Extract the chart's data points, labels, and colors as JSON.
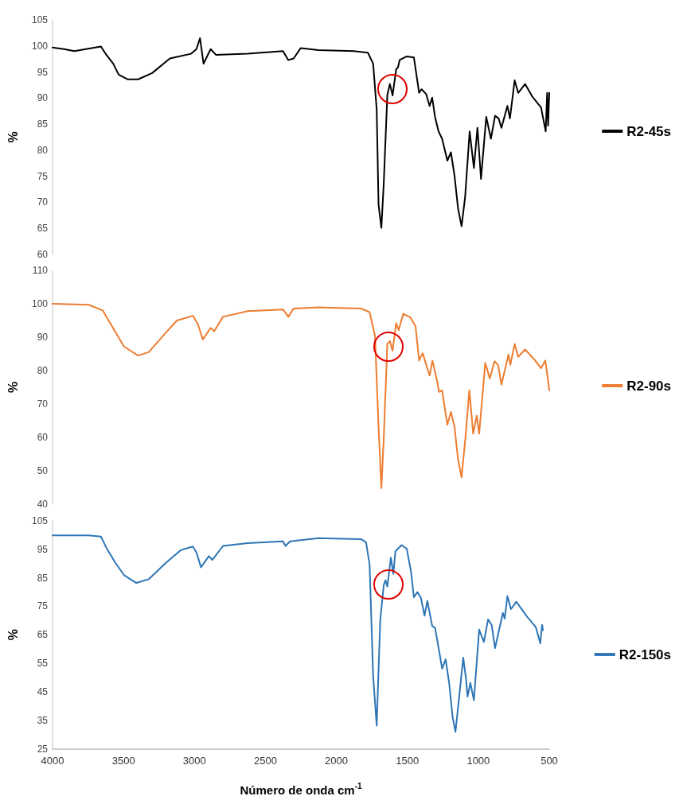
{
  "chart_data": [
    {
      "type": "line",
      "ylabel": "%",
      "xlim": [
        4000,
        500
      ],
      "xticks": [
        4000,
        3500,
        3000,
        2500,
        2000,
        1500,
        1000,
        500
      ],
      "ylim": [
        60,
        105
      ],
      "yticks": [
        60,
        65,
        70,
        75,
        80,
        85,
        90,
        95,
        100,
        105
      ],
      "tick_labels": "y",
      "legend": "right",
      "grid": false,
      "marker": "none",
      "series": [
        {
          "name": "R2-45s",
          "color": "#000000",
          "x": [
            4000,
            3920,
            3846,
            3659,
            3621,
            3572,
            3534,
            3472,
            3397,
            3298,
            3173,
            3024,
            2986,
            2961,
            2936,
            2886,
            2849,
            2625,
            2376,
            2339,
            2301,
            2251,
            2127,
            1878,
            1778,
            1741,
            1716,
            1703,
            1683,
            1666,
            1641,
            1623,
            1604,
            1579,
            1566,
            1554,
            1504,
            1454,
            1417,
            1400,
            1368,
            1343,
            1325,
            1305,
            1280,
            1255,
            1218,
            1193,
            1168,
            1143,
            1118,
            1093,
            1061,
            1031,
            1006,
            981,
            944,
            911,
            882,
            857,
            837,
            795,
            777,
            744,
            719,
            670,
            620,
            558,
            525,
            515,
            508,
            500
          ],
          "values": [
            99.7,
            99.4,
            99.0,
            99.9,
            98.3,
            96.6,
            94.5,
            93.6,
            93.6,
            94.8,
            97.6,
            98.5,
            99.4,
            101.5,
            96.6,
            99.4,
            98.3,
            98.5,
            99.0,
            97.3,
            97.6,
            99.6,
            99.2,
            99.0,
            98.7,
            96.6,
            87.8,
            69.6,
            65.1,
            73.8,
            90.6,
            92.7,
            90.5,
            95.5,
            95.9,
            97.3,
            98.0,
            97.8,
            91.0,
            91.7,
            90.8,
            88.5,
            90.1,
            86.4,
            83.6,
            82.2,
            78.0,
            79.6,
            75.2,
            68.9,
            65.4,
            71.0,
            83.6,
            76.6,
            84.3,
            74.5,
            86.4,
            82.2,
            86.6,
            86.1,
            84.3,
            88.5,
            86.1,
            93.4,
            91.0,
            92.7,
            90.3,
            88.2,
            83.6,
            91.0,
            84.7,
            91.0
          ]
        }
      ]
    },
    {
      "type": "line",
      "ylabel": "%",
      "xlim": [
        4000,
        500
      ],
      "xticks": [
        4000,
        3500,
        3000,
        2500,
        2000,
        1500,
        1000,
        500
      ],
      "ylim": [
        40,
        110
      ],
      "yticks": [
        40,
        50,
        60,
        70,
        80,
        90,
        100,
        110
      ],
      "tick_labels": "y",
      "legend": "right",
      "grid": false,
      "marker": "none",
      "series": [
        {
          "name": "R2-90s",
          "color": "#ed7d31",
          "x": [
            4000,
            3746,
            3646,
            3572,
            3497,
            3397,
            3323,
            3198,
            3123,
            3011,
            2974,
            2941,
            2886,
            2861,
            2799,
            2625,
            2376,
            2339,
            2301,
            2127,
            1828,
            1766,
            1728,
            1703,
            1683,
            1666,
            1641,
            1623,
            1604,
            1579,
            1561,
            1529,
            1479,
            1442,
            1417,
            1392,
            1343,
            1323,
            1293,
            1276,
            1255,
            1218,
            1193,
            1168,
            1143,
            1118,
            1093,
            1063,
            1036,
            1011,
            994,
            951,
            919,
            886,
            861,
            837,
            787,
            774,
            744,
            719,
            670,
            607,
            558,
            528,
            513,
            500
          ],
          "values": [
            100,
            99.7,
            98.0,
            92.6,
            87.2,
            84.5,
            85.5,
            91.5,
            95.0,
            96.4,
            93.7,
            89.3,
            92.8,
            91.8,
            96.1,
            97.8,
            98.3,
            96.1,
            98.6,
            98.9,
            98.6,
            97.5,
            90.4,
            63.3,
            44.8,
            60.0,
            88.0,
            88.8,
            85.9,
            94.2,
            92.1,
            97.0,
            95.9,
            93.2,
            83.0,
            85.2,
            78.5,
            83.0,
            77.4,
            73.6,
            74.1,
            63.8,
            67.6,
            63.3,
            53.5,
            48.0,
            58.9,
            74.1,
            61.1,
            66.5,
            61.1,
            82.3,
            77.6,
            82.8,
            81.7,
            75.8,
            84.8,
            81.7,
            88.0,
            84.1,
            86.3,
            83.4,
            80.7,
            83.0,
            78.5,
            74.1
          ]
        }
      ]
    },
    {
      "type": "line",
      "ylabel": "%",
      "xlabel": "Número de onda cm$^{-1}$",
      "xlim": [
        4000,
        500
      ],
      "xticks": [
        4000,
        3500,
        3000,
        2500,
        2000,
        1500,
        1000,
        500
      ],
      "ylim": [
        25,
        105
      ],
      "yticks": [
        25,
        35,
        45,
        55,
        65,
        75,
        85,
        95,
        105
      ],
      "legend": "right",
      "grid": false,
      "marker": "none",
      "series": [
        {
          "name": "R2-150s",
          "color": "#2e75b6",
          "x": [
            4000,
            3746,
            3659,
            3621,
            3559,
            3497,
            3410,
            3323,
            3198,
            3098,
            3011,
            2986,
            2954,
            2899,
            2874,
            2799,
            2625,
            2376,
            2359,
            2326,
            2127,
            1828,
            1791,
            1766,
            1741,
            1716,
            1691,
            1666,
            1654,
            1641,
            1616,
            1599,
            1584,
            1541,
            1504,
            1474,
            1454,
            1429,
            1404,
            1379,
            1359,
            1325,
            1305,
            1268,
            1255,
            1230,
            1205,
            1181,
            1161,
            1136,
            1106,
            1086,
            1076,
            1056,
            1031,
            994,
            961,
            931,
            906,
            882,
            827,
            814,
            795,
            770,
            732,
            657,
            595,
            563,
            558,
            550,
            545
          ],
          "values": [
            99.9,
            99.9,
            99.5,
            95.6,
            90.4,
            86.0,
            83.2,
            84.5,
            90.4,
            94.7,
            96.0,
            93.9,
            88.7,
            92.6,
            91.3,
            96.2,
            97.2,
            97.8,
            96.2,
            97.8,
            98.9,
            98.6,
            97.5,
            89.7,
            50.5,
            33.1,
            70.1,
            82.5,
            84.2,
            81.9,
            92.1,
            86.4,
            94.3,
            96.5,
            95.2,
            87.1,
            78.2,
            80.0,
            77.9,
            71.7,
            76.9,
            68.1,
            67.5,
            57.0,
            53.1,
            56.4,
            47.9,
            36.1,
            30.9,
            42.6,
            57.0,
            49.2,
            43.3,
            48.1,
            42.0,
            66.8,
            62.5,
            70.4,
            68.5,
            60.3,
            72.7,
            70.7,
            78.6,
            74.0,
            76.6,
            71.4,
            67.7,
            62.0,
            64.9,
            68.5,
            66.6
          ]
        }
      ]
    }
  ]
}
